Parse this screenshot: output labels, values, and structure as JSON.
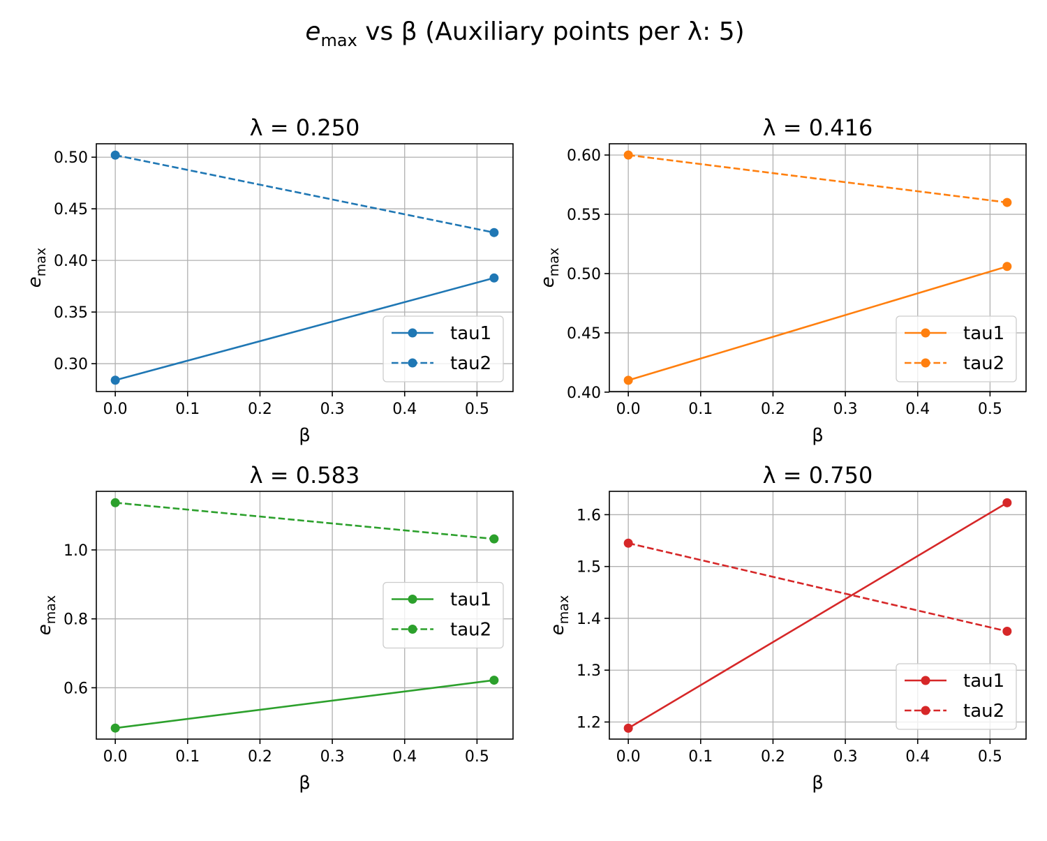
{
  "figure": {
    "title_main": "e",
    "title_sub": "max",
    "title_rest": " vs β (Auxiliary points per λ: 5)"
  },
  "colors": {
    "blue": "#1f77b4",
    "orange": "#ff7f0e",
    "green": "#2ca02c",
    "red": "#d62728",
    "grid": "#b0b0b0"
  },
  "chart_data": [
    {
      "type": "line",
      "title": "λ = 0.250",
      "xlabel": "β",
      "ylabel_main": "e",
      "ylabel_sub": "max",
      "color": "#1f77b4",
      "xlim": [
        -0.0262,
        0.5498
      ],
      "ylim": [
        0.273,
        0.513
      ],
      "xticks": [
        0.0,
        0.1,
        0.2,
        0.3,
        0.4,
        0.5
      ],
      "xtick_labels": [
        "0.0",
        "0.1",
        "0.2",
        "0.3",
        "0.4",
        "0.5"
      ],
      "yticks": [
        0.3,
        0.35,
        0.4,
        0.45,
        0.5
      ],
      "ytick_labels": [
        "0.30",
        "0.35",
        "0.40",
        "0.45",
        "0.50"
      ],
      "grid": true,
      "legend_position": "lower right",
      "series": [
        {
          "name": "tau1",
          "style": "solid",
          "x": [
            0.0,
            0.5236
          ],
          "y": [
            0.284,
            0.383
          ]
        },
        {
          "name": "tau2",
          "style": "dashed",
          "x": [
            0.0,
            0.5236
          ],
          "y": [
            0.502,
            0.427
          ]
        }
      ]
    },
    {
      "type": "line",
      "title": "λ = 0.416",
      "xlabel": "β",
      "ylabel_main": "e",
      "ylabel_sub": "max",
      "color": "#ff7f0e",
      "xlim": [
        -0.0262,
        0.5498
      ],
      "ylim": [
        0.4005,
        0.6095
      ],
      "xticks": [
        0.0,
        0.1,
        0.2,
        0.3,
        0.4,
        0.5
      ],
      "xtick_labels": [
        "0.0",
        "0.1",
        "0.2",
        "0.3",
        "0.4",
        "0.5"
      ],
      "yticks": [
        0.4,
        0.45,
        0.5,
        0.55,
        0.6
      ],
      "ytick_labels": [
        "0.40",
        "0.45",
        "0.50",
        "0.55",
        "0.60"
      ],
      "grid": true,
      "legend_position": "lower right",
      "series": [
        {
          "name": "tau1",
          "style": "solid",
          "x": [
            0.0,
            0.5236
          ],
          "y": [
            0.41,
            0.506
          ]
        },
        {
          "name": "tau2",
          "style": "dashed",
          "x": [
            0.0,
            0.5236
          ],
          "y": [
            0.6,
            0.56
          ]
        }
      ]
    },
    {
      "type": "line",
      "title": "λ = 0.583",
      "xlabel": "β",
      "ylabel_main": "e",
      "ylabel_sub": "max",
      "color": "#2ca02c",
      "xlim": [
        -0.0262,
        0.5498
      ],
      "ylim": [
        0.451,
        1.17
      ],
      "xticks": [
        0.0,
        0.1,
        0.2,
        0.3,
        0.4,
        0.5
      ],
      "xtick_labels": [
        "0.0",
        "0.1",
        "0.2",
        "0.3",
        "0.4",
        "0.5"
      ],
      "yticks": [
        0.6,
        0.8,
        1.0
      ],
      "ytick_labels": [
        "0.6",
        "0.8",
        "1.0"
      ],
      "grid": true,
      "legend_position": "center right",
      "series": [
        {
          "name": "tau1",
          "style": "solid",
          "x": [
            0.0,
            0.5236
          ],
          "y": [
            0.483,
            0.622
          ]
        },
        {
          "name": "tau2",
          "style": "dashed",
          "x": [
            0.0,
            0.5236
          ],
          "y": [
            1.137,
            1.032
          ]
        }
      ]
    },
    {
      "type": "line",
      "title": "λ = 0.750",
      "xlabel": "β",
      "ylabel_main": "e",
      "ylabel_sub": "max",
      "color": "#d62728",
      "xlim": [
        -0.0262,
        0.5498
      ],
      "ylim": [
        1.167,
        1.645
      ],
      "xticks": [
        0.0,
        0.1,
        0.2,
        0.3,
        0.4,
        0.5
      ],
      "xtick_labels": [
        "0.0",
        "0.1",
        "0.2",
        "0.3",
        "0.4",
        "0.5"
      ],
      "yticks": [
        1.2,
        1.3,
        1.4,
        1.5,
        1.6
      ],
      "ytick_labels": [
        "1.2",
        "1.3",
        "1.4",
        "1.5",
        "1.6"
      ],
      "grid": true,
      "legend_position": "lower right",
      "series": [
        {
          "name": "tau1",
          "style": "solid",
          "x": [
            0.0,
            0.5236
          ],
          "y": [
            1.188,
            1.623
          ]
        },
        {
          "name": "tau2",
          "style": "dashed",
          "x": [
            0.0,
            0.5236
          ],
          "y": [
            1.545,
            1.375
          ]
        }
      ]
    }
  ]
}
